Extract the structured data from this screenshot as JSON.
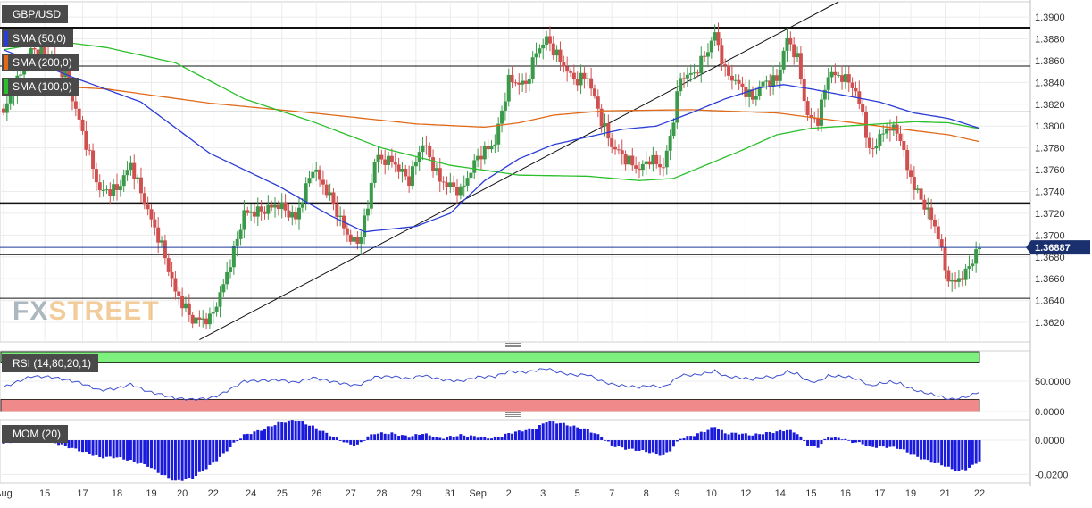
{
  "symbol": "GBP/USD",
  "indicators": {
    "sma50": {
      "label": "SMA (50,0)",
      "color": "#2a3cd6"
    },
    "sma200": {
      "label": "SMA (200,0)",
      "color": "#e06a1a"
    },
    "sma100": {
      "label": "SMA (100,0)",
      "color": "#2cbf2c"
    }
  },
  "watermark": {
    "part1": "FX",
    "part2": "STREET"
  },
  "colors": {
    "up": "#3a9a4a",
    "down": "#d05050",
    "mom": "#1a1adc",
    "rsi_line": "#3d4fd0",
    "rsi_upper": "#7ef07e",
    "rsi_lower": "#f08a8a",
    "price_line": "#1a3a9a"
  },
  "chart_data": [
    {
      "type": "candlestick",
      "title": "GBP/USD",
      "current_price": "1.36887",
      "current_value": 1.36887,
      "ylim": [
        1.3602,
        1.3914
      ],
      "y_ticks": [
        1.362,
        1.364,
        1.366,
        1.368,
        1.37,
        1.372,
        1.374,
        1.376,
        1.378,
        1.38,
        1.382,
        1.384,
        1.386,
        1.388,
        1.39
      ],
      "y_tick_labels": [
        "1.3620",
        "1.3640",
        "1.3660",
        "1.3680",
        "1.3700",
        "1.3720",
        "1.3740",
        "1.3760",
        "1.3780",
        "1.3800",
        "1.3820",
        "1.3840",
        "1.3860",
        "1.3880",
        "1.3900"
      ],
      "x_labels": [
        "Aug",
        "15",
        "17",
        "18",
        "19",
        "20",
        "22",
        "24",
        "25",
        "26",
        "27",
        "28",
        "29",
        "31",
        "Sep",
        "2",
        "3",
        "5",
        "7",
        "8",
        "9",
        "10",
        "12",
        "14",
        "15",
        "16",
        "17",
        "19",
        "21",
        "22"
      ],
      "x_label_index": [
        0,
        12,
        23,
        33,
        43,
        52,
        61,
        72,
        81,
        91,
        101,
        110,
        120,
        130,
        138,
        147,
        157,
        167,
        177,
        187,
        196,
        206,
        216,
        226,
        235,
        245,
        255,
        264,
        274,
        284
      ],
      "horizontal_levels": [
        {
          "value": 1.389,
          "heavy": true
        },
        {
          "value": 1.3855,
          "heavy": false
        },
        {
          "value": 1.3813,
          "heavy": false
        },
        {
          "value": 1.3767,
          "heavy": false
        },
        {
          "value": 1.3729,
          "heavy": true
        },
        {
          "value": 1.3682,
          "heavy": false
        },
        {
          "value": 1.3642,
          "heavy": false
        }
      ],
      "trendlines": [
        {
          "from": [
            57,
            1.3604
          ],
          "to": [
            243,
            1.3914
          ]
        }
      ],
      "key_points": [
        {
          "index": 0,
          "close": 1.3812
        },
        {
          "index": 8,
          "close": 1.387
        },
        {
          "index": 14,
          "close": 1.3865
        },
        {
          "index": 18,
          "close": 1.3845
        },
        {
          "index": 22,
          "close": 1.3805
        },
        {
          "index": 28,
          "close": 1.374
        },
        {
          "index": 33,
          "close": 1.3742
        },
        {
          "index": 37,
          "close": 1.3765
        },
        {
          "index": 42,
          "close": 1.3722
        },
        {
          "index": 46,
          "close": 1.369
        },
        {
          "index": 50,
          "close": 1.3648
        },
        {
          "index": 55,
          "close": 1.3622
        },
        {
          "index": 60,
          "close": 1.3623
        },
        {
          "index": 63,
          "close": 1.3645
        },
        {
          "index": 67,
          "close": 1.3685
        },
        {
          "index": 70,
          "close": 1.372
        },
        {
          "index": 75,
          "close": 1.3722
        },
        {
          "index": 80,
          "close": 1.3728
        },
        {
          "index": 85,
          "close": 1.3715
        },
        {
          "index": 90,
          "close": 1.3762
        },
        {
          "index": 95,
          "close": 1.3735
        },
        {
          "index": 100,
          "close": 1.37
        },
        {
          "index": 103,
          "close": 1.3692
        },
        {
          "index": 106,
          "close": 1.3725
        },
        {
          "index": 108,
          "close": 1.377
        },
        {
          "index": 113,
          "close": 1.3768
        },
        {
          "index": 118,
          "close": 1.375
        },
        {
          "index": 122,
          "close": 1.3785
        },
        {
          "index": 127,
          "close": 1.375
        },
        {
          "index": 133,
          "close": 1.374
        },
        {
          "index": 138,
          "close": 1.3772
        },
        {
          "index": 143,
          "close": 1.3785
        },
        {
          "index": 147,
          "close": 1.3842
        },
        {
          "index": 152,
          "close": 1.3838
        },
        {
          "index": 155,
          "close": 1.3868
        },
        {
          "index": 158,
          "close": 1.388
        },
        {
          "index": 162,
          "close": 1.386
        },
        {
          "index": 166,
          "close": 1.3842
        },
        {
          "index": 170,
          "close": 1.3845
        },
        {
          "index": 174,
          "close": 1.3805
        },
        {
          "index": 177,
          "close": 1.3782
        },
        {
          "index": 181,
          "close": 1.377
        },
        {
          "index": 185,
          "close": 1.376
        },
        {
          "index": 188,
          "close": 1.377
        },
        {
          "index": 192,
          "close": 1.3762
        },
        {
          "index": 194,
          "close": 1.379
        },
        {
          "index": 197,
          "close": 1.3845
        },
        {
          "index": 201,
          "close": 1.3848
        },
        {
          "index": 205,
          "close": 1.387
        },
        {
          "index": 207,
          "close": 1.3885
        },
        {
          "index": 210,
          "close": 1.385
        },
        {
          "index": 214,
          "close": 1.3838
        },
        {
          "index": 218,
          "close": 1.3825
        },
        {
          "index": 221,
          "close": 1.384
        },
        {
          "index": 225,
          "close": 1.3842
        },
        {
          "index": 228,
          "close": 1.388
        },
        {
          "index": 231,
          "close": 1.3862
        },
        {
          "index": 234,
          "close": 1.3808
        },
        {
          "index": 237,
          "close": 1.3805
        },
        {
          "index": 240,
          "close": 1.3848
        },
        {
          "index": 244,
          "close": 1.3845
        },
        {
          "index": 247,
          "close": 1.3838
        },
        {
          "index": 250,
          "close": 1.3812
        },
        {
          "index": 252,
          "close": 1.3775
        },
        {
          "index": 255,
          "close": 1.379
        },
        {
          "index": 258,
          "close": 1.38
        },
        {
          "index": 261,
          "close": 1.379
        },
        {
          "index": 263,
          "close": 1.376
        },
        {
          "index": 266,
          "close": 1.3738
        },
        {
          "index": 269,
          "close": 1.3722
        },
        {
          "index": 272,
          "close": 1.37
        },
        {
          "index": 274,
          "close": 1.3668
        },
        {
          "index": 276,
          "close": 1.3655
        },
        {
          "index": 278,
          "close": 1.366
        },
        {
          "index": 280,
          "close": 1.3665
        },
        {
          "index": 282,
          "close": 1.3678
        },
        {
          "index": 284,
          "close": 1.36887
        }
      ],
      "sma50": [
        [
          0,
          1.387
        ],
        [
          20,
          1.3845
        ],
        [
          40,
          1.3822
        ],
        [
          60,
          1.3775
        ],
        [
          80,
          1.3745
        ],
        [
          95,
          1.3718
        ],
        [
          105,
          1.3703
        ],
        [
          120,
          1.3708
        ],
        [
          130,
          1.372
        ],
        [
          140,
          1.375
        ],
        [
          150,
          1.377
        ],
        [
          160,
          1.3783
        ],
        [
          170,
          1.379
        ],
        [
          180,
          1.3797
        ],
        [
          190,
          1.38
        ],
        [
          200,
          1.3812
        ],
        [
          210,
          1.3825
        ],
        [
          220,
          1.3835
        ],
        [
          227,
          1.3838
        ],
        [
          235,
          1.3834
        ],
        [
          245,
          1.3828
        ],
        [
          255,
          1.3822
        ],
        [
          265,
          1.3812
        ],
        [
          275,
          1.3807
        ],
        [
          285,
          1.3797
        ]
      ],
      "sma200": [
        [
          0,
          1.3839
        ],
        [
          30,
          1.3834
        ],
        [
          60,
          1.3821
        ],
        [
          90,
          1.3812
        ],
        [
          120,
          1.3802
        ],
        [
          140,
          1.3799
        ],
        [
          150,
          1.3803
        ],
        [
          160,
          1.381
        ],
        [
          175,
          1.3814
        ],
        [
          200,
          1.3815
        ],
        [
          225,
          1.3812
        ],
        [
          240,
          1.3806
        ],
        [
          250,
          1.3802
        ],
        [
          262,
          1.3797
        ],
        [
          275,
          1.3792
        ],
        [
          285,
          1.3785
        ]
      ],
      "sma100": [
        [
          0,
          1.387
        ],
        [
          15,
          1.3878
        ],
        [
          30,
          1.3872
        ],
        [
          50,
          1.3858
        ],
        [
          70,
          1.3825
        ],
        [
          90,
          1.3804
        ],
        [
          110,
          1.378
        ],
        [
          130,
          1.3764
        ],
        [
          150,
          1.3755
        ],
        [
          170,
          1.3754
        ],
        [
          185,
          1.375
        ],
        [
          195,
          1.3752
        ],
        [
          205,
          1.3765
        ],
        [
          215,
          1.3778
        ],
        [
          225,
          1.3792
        ],
        [
          235,
          1.3798
        ],
        [
          245,
          1.38
        ],
        [
          255,
          1.3802
        ],
        [
          265,
          1.3804
        ],
        [
          275,
          1.3803
        ],
        [
          285,
          1.3797
        ]
      ]
    },
    {
      "type": "line",
      "title": "RSI (14,80,20,1)",
      "ylim": [
        0,
        100
      ],
      "y_ticks": [
        0,
        50
      ],
      "y_tick_labels": [
        "0.0000",
        "50.0000"
      ],
      "bands": {
        "upper": 80,
        "lower": 20
      },
      "key_points": [
        [
          0,
          40
        ],
        [
          8,
          58
        ],
        [
          14,
          57
        ],
        [
          22,
          48
        ],
        [
          28,
          35
        ],
        [
          33,
          38
        ],
        [
          37,
          45
        ],
        [
          42,
          33
        ],
        [
          46,
          28
        ],
        [
          50,
          22
        ],
        [
          55,
          20
        ],
        [
          60,
          22
        ],
        [
          63,
          28
        ],
        [
          67,
          40
        ],
        [
          70,
          50
        ],
        [
          75,
          51
        ],
        [
          80,
          52
        ],
        [
          85,
          48
        ],
        [
          90,
          56
        ],
        [
          95,
          50
        ],
        [
          100,
          45
        ],
        [
          103,
          43
        ],
        [
          106,
          50
        ],
        [
          108,
          57
        ],
        [
          113,
          58
        ],
        [
          118,
          54
        ],
        [
          122,
          60
        ],
        [
          127,
          53
        ],
        [
          133,
          50
        ],
        [
          138,
          57
        ],
        [
          143,
          58
        ],
        [
          147,
          66
        ],
        [
          152,
          65
        ],
        [
          155,
          68
        ],
        [
          158,
          71
        ],
        [
          162,
          64
        ],
        [
          166,
          60
        ],
        [
          170,
          61
        ],
        [
          174,
          50
        ],
        [
          177,
          45
        ],
        [
          181,
          42
        ],
        [
          185,
          40
        ],
        [
          188,
          43
        ],
        [
          192,
          40
        ],
        [
          194,
          47
        ],
        [
          197,
          60
        ],
        [
          201,
          60
        ],
        [
          205,
          64
        ],
        [
          207,
          67
        ],
        [
          210,
          58
        ],
        [
          214,
          56
        ],
        [
          218,
          53
        ],
        [
          221,
          57
        ],
        [
          225,
          57
        ],
        [
          228,
          66
        ],
        [
          231,
          62
        ],
        [
          234,
          50
        ],
        [
          237,
          49
        ],
        [
          240,
          59
        ],
        [
          244,
          58
        ],
        [
          247,
          56
        ],
        [
          250,
          50
        ],
        [
          252,
          42
        ],
        [
          255,
          46
        ],
        [
          258,
          49
        ],
        [
          261,
          46
        ],
        [
          263,
          40
        ],
        [
          266,
          34
        ],
        [
          269,
          30
        ],
        [
          272,
          26
        ],
        [
          274,
          22
        ],
        [
          276,
          20
        ],
        [
          278,
          22
        ],
        [
          280,
          24
        ],
        [
          282,
          28
        ],
        [
          284,
          33
        ]
      ]
    },
    {
      "type": "bar",
      "title": "MOM (20)",
      "ylim": [
        -0.025,
        0.012
      ],
      "y_ticks": [
        0,
        -0.02
      ],
      "y_tick_labels": [
        "0.0000",
        "-0.0200"
      ],
      "key_points": [
        [
          0,
          -0.002
        ],
        [
          8,
          0.001
        ],
        [
          14,
          -0.001
        ],
        [
          22,
          -0.006
        ],
        [
          28,
          -0.01
        ],
        [
          33,
          -0.01
        ],
        [
          37,
          -0.012
        ],
        [
          42,
          -0.015
        ],
        [
          46,
          -0.02
        ],
        [
          50,
          -0.024
        ],
        [
          55,
          -0.022
        ],
        [
          60,
          -0.015
        ],
        [
          63,
          -0.01
        ],
        [
          67,
          -0.002
        ],
        [
          70,
          0.003
        ],
        [
          75,
          0.006
        ],
        [
          80,
          0.01
        ],
        [
          85,
          0.012
        ],
        [
          90,
          0.008
        ],
        [
          95,
          0.003
        ],
        [
          100,
          -0.002
        ],
        [
          103,
          -0.003
        ],
        [
          106,
          0.002
        ],
        [
          108,
          0.004
        ],
        [
          113,
          0.004
        ],
        [
          118,
          0.002
        ],
        [
          122,
          0.004
        ],
        [
          127,
          0.001
        ],
        [
          133,
          0.003
        ],
        [
          138,
          0.002
        ],
        [
          143,
          0.001
        ],
        [
          147,
          0.004
        ],
        [
          152,
          0.006
        ],
        [
          155,
          0.007
        ],
        [
          158,
          0.011
        ],
        [
          162,
          0.01
        ],
        [
          166,
          0.008
        ],
        [
          170,
          0.006
        ],
        [
          174,
          0.002
        ],
        [
          177,
          -0.003
        ],
        [
          181,
          -0.005
        ],
        [
          185,
          -0.006
        ],
        [
          188,
          -0.007
        ],
        [
          192,
          -0.009
        ],
        [
          194,
          -0.006
        ],
        [
          197,
          0.001
        ],
        [
          201,
          0.003
        ],
        [
          205,
          0.006
        ],
        [
          207,
          0.008
        ],
        [
          210,
          0.004
        ],
        [
          214,
          0.004
        ],
        [
          218,
          0.003
        ],
        [
          221,
          0.004
        ],
        [
          225,
          0.005
        ],
        [
          228,
          0.006
        ],
        [
          231,
          0.004
        ],
        [
          234,
          -0.003
        ],
        [
          237,
          -0.004
        ],
        [
          240,
          0.002
        ],
        [
          244,
          0.001
        ],
        [
          247,
          -0.001
        ],
        [
          250,
          -0.002
        ],
        [
          252,
          -0.004
        ],
        [
          255,
          -0.004
        ],
        [
          258,
          -0.004
        ],
        [
          261,
          -0.005
        ],
        [
          263,
          -0.007
        ],
        [
          266,
          -0.01
        ],
        [
          269,
          -0.012
        ],
        [
          272,
          -0.014
        ],
        [
          274,
          -0.015
        ],
        [
          276,
          -0.017
        ],
        [
          278,
          -0.018
        ],
        [
          280,
          -0.017
        ],
        [
          282,
          -0.015
        ],
        [
          284,
          -0.012
        ]
      ]
    }
  ]
}
